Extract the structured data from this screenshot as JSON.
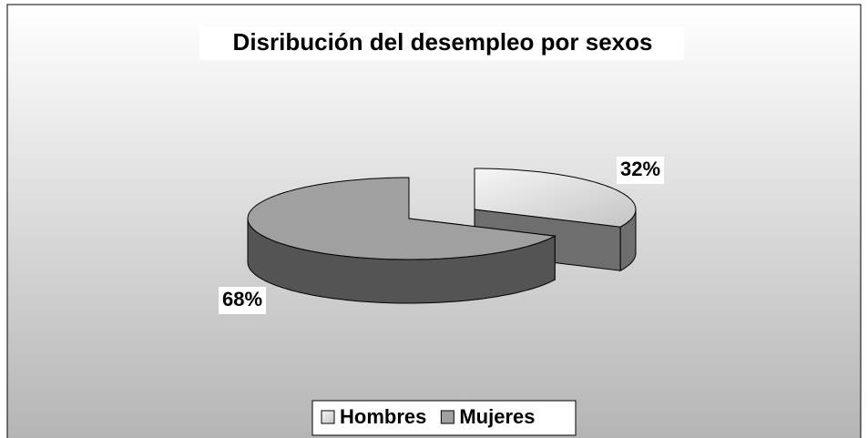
{
  "chart_data": {
    "type": "pie",
    "title": "Disribución del desempleo por sexos",
    "categories": [
      "Hombres",
      "Mujeres"
    ],
    "values": [
      32,
      68
    ],
    "value_labels": [
      "32%",
      "68%"
    ],
    "colors": [
      "#e4e4e4",
      "#a0a0a0"
    ],
    "legend": "bottom",
    "three_d": true,
    "explode": [
      true,
      false
    ]
  }
}
